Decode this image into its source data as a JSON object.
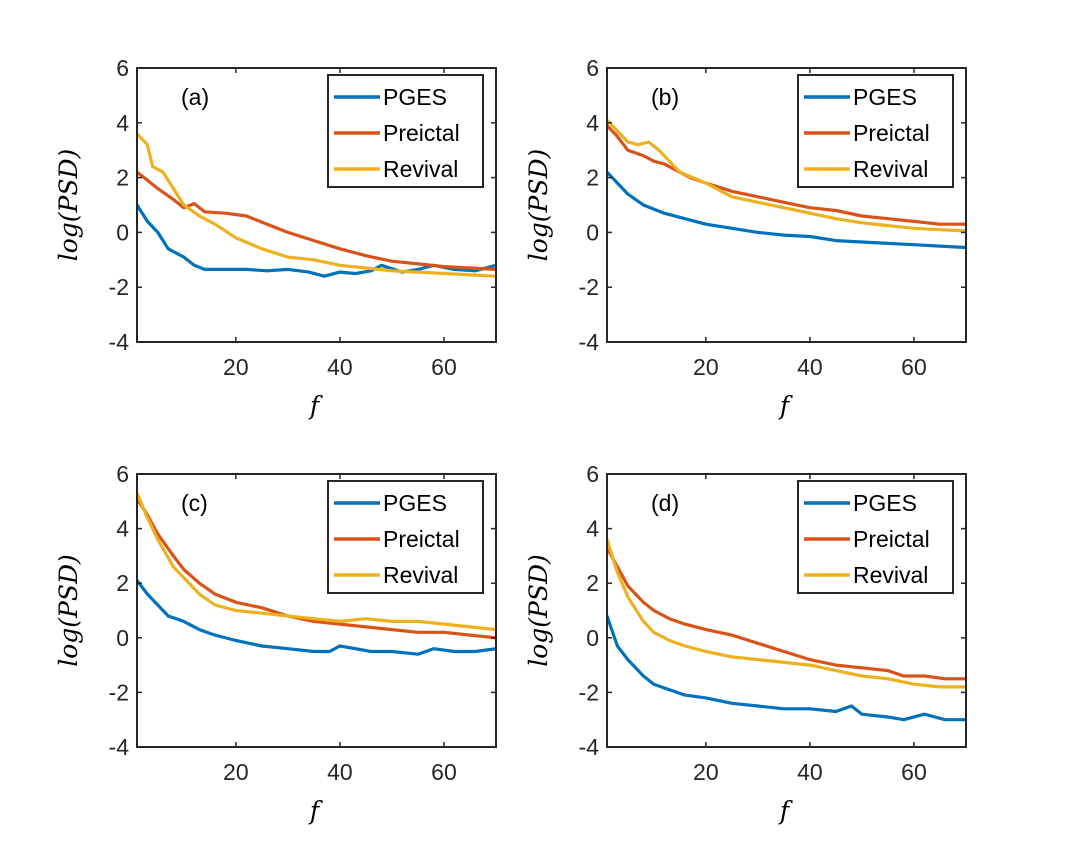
{
  "chart_data": [
    {
      "type": "line",
      "panel_label": "(a)",
      "xlabel": "f",
      "ylabel": "log(PSD)",
      "xlim": [
        1,
        70
      ],
      "ylim": [
        -4,
        6
      ],
      "xticks": [
        20,
        40,
        60
      ],
      "yticks": [
        -4,
        -2,
        0,
        2,
        4,
        6
      ],
      "grid": false,
      "legend_position": "top-right",
      "series": [
        {
          "name": "PGES",
          "color": "#0072BD",
          "points": [
            [
              1,
              1.0
            ],
            [
              3,
              0.4
            ],
            [
              5,
              0.0
            ],
            [
              7,
              -0.6
            ],
            [
              10,
              -0.9
            ],
            [
              12,
              -1.2
            ],
            [
              14,
              -1.35
            ],
            [
              18,
              -1.35
            ],
            [
              22,
              -1.35
            ],
            [
              26,
              -1.4
            ],
            [
              30,
              -1.35
            ],
            [
              34,
              -1.45
            ],
            [
              37,
              -1.6
            ],
            [
              40,
              -1.45
            ],
            [
              43,
              -1.5
            ],
            [
              46,
              -1.4
            ],
            [
              48,
              -1.2
            ],
            [
              52,
              -1.45
            ],
            [
              55,
              -1.35
            ],
            [
              58,
              -1.2
            ],
            [
              62,
              -1.35
            ],
            [
              66,
              -1.4
            ],
            [
              70,
              -1.2
            ]
          ]
        },
        {
          "name": "Preictal",
          "color": "#D95319",
          "points": [
            [
              1,
              2.2
            ],
            [
              3,
              1.9
            ],
            [
              5,
              1.6
            ],
            [
              8,
              1.2
            ],
            [
              10,
              0.9
            ],
            [
              12,
              1.05
            ],
            [
              14,
              0.75
            ],
            [
              18,
              0.7
            ],
            [
              22,
              0.6
            ],
            [
              26,
              0.3
            ],
            [
              30,
              0.0
            ],
            [
              35,
              -0.3
            ],
            [
              40,
              -0.6
            ],
            [
              45,
              -0.85
            ],
            [
              50,
              -1.05
            ],
            [
              55,
              -1.15
            ],
            [
              60,
              -1.25
            ],
            [
              65,
              -1.3
            ],
            [
              70,
              -1.35
            ]
          ]
        },
        {
          "name": "Revival",
          "color": "#EDB120",
          "points": [
            [
              1,
              3.6
            ],
            [
              3,
              3.2
            ],
            [
              4,
              2.4
            ],
            [
              6,
              2.2
            ],
            [
              8,
              1.6
            ],
            [
              10,
              1.0
            ],
            [
              13,
              0.6
            ],
            [
              16,
              0.3
            ],
            [
              20,
              -0.2
            ],
            [
              25,
              -0.6
            ],
            [
              30,
              -0.9
            ],
            [
              35,
              -1.0
            ],
            [
              40,
              -1.2
            ],
            [
              45,
              -1.3
            ],
            [
              50,
              -1.4
            ],
            [
              55,
              -1.45
            ],
            [
              60,
              -1.5
            ],
            [
              65,
              -1.55
            ],
            [
              70,
              -1.6
            ]
          ]
        }
      ]
    },
    {
      "type": "line",
      "panel_label": "(b)",
      "xlabel": "f",
      "ylabel": "log(PSD)",
      "xlim": [
        1,
        70
      ],
      "ylim": [
        -4,
        6
      ],
      "xticks": [
        20,
        40,
        60
      ],
      "yticks": [
        -4,
        -2,
        0,
        2,
        4,
        6
      ],
      "grid": false,
      "legend_position": "top-right",
      "series": [
        {
          "name": "PGES",
          "color": "#0072BD",
          "points": [
            [
              1,
              2.2
            ],
            [
              3,
              1.8
            ],
            [
              5,
              1.4
            ],
            [
              8,
              1.0
            ],
            [
              12,
              0.7
            ],
            [
              16,
              0.5
            ],
            [
              20,
              0.3
            ],
            [
              25,
              0.15
            ],
            [
              30,
              0.0
            ],
            [
              35,
              -0.1
            ],
            [
              40,
              -0.15
            ],
            [
              45,
              -0.3
            ],
            [
              50,
              -0.35
            ],
            [
              55,
              -0.4
            ],
            [
              60,
              -0.45
            ],
            [
              65,
              -0.5
            ],
            [
              70,
              -0.55
            ]
          ]
        },
        {
          "name": "Preictal",
          "color": "#D95319",
          "points": [
            [
              1,
              3.9
            ],
            [
              3,
              3.5
            ],
            [
              5,
              3.0
            ],
            [
              8,
              2.8
            ],
            [
              10,
              2.6
            ],
            [
              12,
              2.5
            ],
            [
              14,
              2.3
            ],
            [
              17,
              2.0
            ],
            [
              20,
              1.8
            ],
            [
              25,
              1.5
            ],
            [
              30,
              1.3
            ],
            [
              35,
              1.1
            ],
            [
              40,
              0.9
            ],
            [
              45,
              0.8
            ],
            [
              50,
              0.6
            ],
            [
              55,
              0.5
            ],
            [
              60,
              0.4
            ],
            [
              65,
              0.3
            ],
            [
              70,
              0.3
            ]
          ]
        },
        {
          "name": "Revival",
          "color": "#EDB120",
          "points": [
            [
              1,
              4.1
            ],
            [
              3,
              3.7
            ],
            [
              5,
              3.3
            ],
            [
              7,
              3.2
            ],
            [
              9,
              3.3
            ],
            [
              11,
              3.0
            ],
            [
              13,
              2.6
            ],
            [
              15,
              2.2
            ],
            [
              20,
              1.8
            ],
            [
              25,
              1.3
            ],
            [
              30,
              1.1
            ],
            [
              35,
              0.9
            ],
            [
              40,
              0.7
            ],
            [
              45,
              0.5
            ],
            [
              50,
              0.35
            ],
            [
              55,
              0.25
            ],
            [
              60,
              0.15
            ],
            [
              65,
              0.1
            ],
            [
              70,
              0.05
            ]
          ]
        }
      ]
    },
    {
      "type": "line",
      "panel_label": "(c)",
      "xlabel": "f",
      "ylabel": "log(PSD)",
      "xlim": [
        1,
        70
      ],
      "ylim": [
        -4,
        6
      ],
      "xticks": [
        20,
        40,
        60
      ],
      "yticks": [
        -4,
        -2,
        0,
        2,
        4,
        6
      ],
      "grid": false,
      "legend_position": "top-right",
      "series": [
        {
          "name": "PGES",
          "color": "#0072BD",
          "points": [
            [
              1,
              2.1
            ],
            [
              3,
              1.6
            ],
            [
              5,
              1.2
            ],
            [
              7,
              0.8
            ],
            [
              10,
              0.6
            ],
            [
              13,
              0.3
            ],
            [
              16,
              0.1
            ],
            [
              20,
              -0.1
            ],
            [
              25,
              -0.3
            ],
            [
              30,
              -0.4
            ],
            [
              35,
              -0.5
            ],
            [
              38,
              -0.5
            ],
            [
              40,
              -0.3
            ],
            [
              43,
              -0.4
            ],
            [
              46,
              -0.5
            ],
            [
              50,
              -0.5
            ],
            [
              55,
              -0.6
            ],
            [
              58,
              -0.4
            ],
            [
              62,
              -0.5
            ],
            [
              66,
              -0.5
            ],
            [
              70,
              -0.4
            ]
          ]
        },
        {
          "name": "Preictal",
          "color": "#D95319",
          "points": [
            [
              1,
              5.1
            ],
            [
              3,
              4.5
            ],
            [
              5,
              3.8
            ],
            [
              8,
              3.0
            ],
            [
              10,
              2.5
            ],
            [
              13,
              2.0
            ],
            [
              16,
              1.6
            ],
            [
              20,
              1.3
            ],
            [
              25,
              1.1
            ],
            [
              30,
              0.8
            ],
            [
              35,
              0.6
            ],
            [
              40,
              0.5
            ],
            [
              45,
              0.4
            ],
            [
              50,
              0.3
            ],
            [
              55,
              0.2
            ],
            [
              60,
              0.2
            ],
            [
              65,
              0.1
            ],
            [
              70,
              0.0
            ]
          ]
        },
        {
          "name": "Revival",
          "color": "#EDB120",
          "points": [
            [
              1,
              5.3
            ],
            [
              3,
              4.4
            ],
            [
              5,
              3.6
            ],
            [
              8,
              2.6
            ],
            [
              10,
              2.2
            ],
            [
              13,
              1.6
            ],
            [
              16,
              1.2
            ],
            [
              20,
              1.0
            ],
            [
              25,
              0.9
            ],
            [
              30,
              0.8
            ],
            [
              35,
              0.7
            ],
            [
              40,
              0.6
            ],
            [
              45,
              0.7
            ],
            [
              50,
              0.6
            ],
            [
              55,
              0.6
            ],
            [
              60,
              0.5
            ],
            [
              65,
              0.4
            ],
            [
              70,
              0.3
            ]
          ]
        }
      ]
    },
    {
      "type": "line",
      "panel_label": "(d)",
      "xlabel": "f",
      "ylabel": "log(PSD)",
      "xlim": [
        1,
        70
      ],
      "ylim": [
        -4,
        6
      ],
      "xticks": [
        20,
        40,
        60
      ],
      "yticks": [
        -4,
        -2,
        0,
        2,
        4,
        6
      ],
      "grid": false,
      "legend_position": "top-right",
      "series": [
        {
          "name": "PGES",
          "color": "#0072BD",
          "points": [
            [
              1,
              0.8
            ],
            [
              3,
              -0.3
            ],
            [
              5,
              -0.8
            ],
            [
              8,
              -1.4
            ],
            [
              10,
              -1.7
            ],
            [
              13,
              -1.9
            ],
            [
              16,
              -2.1
            ],
            [
              20,
              -2.2
            ],
            [
              25,
              -2.4
            ],
            [
              30,
              -2.5
            ],
            [
              35,
              -2.6
            ],
            [
              40,
              -2.6
            ],
            [
              45,
              -2.7
            ],
            [
              48,
              -2.5
            ],
            [
              50,
              -2.8
            ],
            [
              55,
              -2.9
            ],
            [
              58,
              -3.0
            ],
            [
              62,
              -2.8
            ],
            [
              66,
              -3.0
            ],
            [
              70,
              -3.0
            ]
          ]
        },
        {
          "name": "Preictal",
          "color": "#D95319",
          "points": [
            [
              1,
              3.3
            ],
            [
              3,
              2.6
            ],
            [
              5,
              1.9
            ],
            [
              8,
              1.3
            ],
            [
              10,
              1.0
            ],
            [
              13,
              0.7
            ],
            [
              16,
              0.5
            ],
            [
              20,
              0.3
            ],
            [
              25,
              0.1
            ],
            [
              30,
              -0.2
            ],
            [
              35,
              -0.5
            ],
            [
              40,
              -0.8
            ],
            [
              45,
              -1.0
            ],
            [
              50,
              -1.1
            ],
            [
              55,
              -1.2
            ],
            [
              58,
              -1.4
            ],
            [
              62,
              -1.4
            ],
            [
              66,
              -1.5
            ],
            [
              70,
              -1.5
            ]
          ]
        },
        {
          "name": "Revival",
          "color": "#EDB120",
          "points": [
            [
              1,
              3.6
            ],
            [
              3,
              2.4
            ],
            [
              5,
              1.5
            ],
            [
              8,
              0.6
            ],
            [
              10,
              0.2
            ],
            [
              13,
              -0.1
            ],
            [
              16,
              -0.3
            ],
            [
              20,
              -0.5
            ],
            [
              25,
              -0.7
            ],
            [
              30,
              -0.8
            ],
            [
              35,
              -0.9
            ],
            [
              40,
              -1.0
            ],
            [
              45,
              -1.2
            ],
            [
              50,
              -1.4
            ],
            [
              55,
              -1.5
            ],
            [
              60,
              -1.7
            ],
            [
              65,
              -1.8
            ],
            [
              70,
              -1.8
            ]
          ]
        }
      ]
    }
  ]
}
